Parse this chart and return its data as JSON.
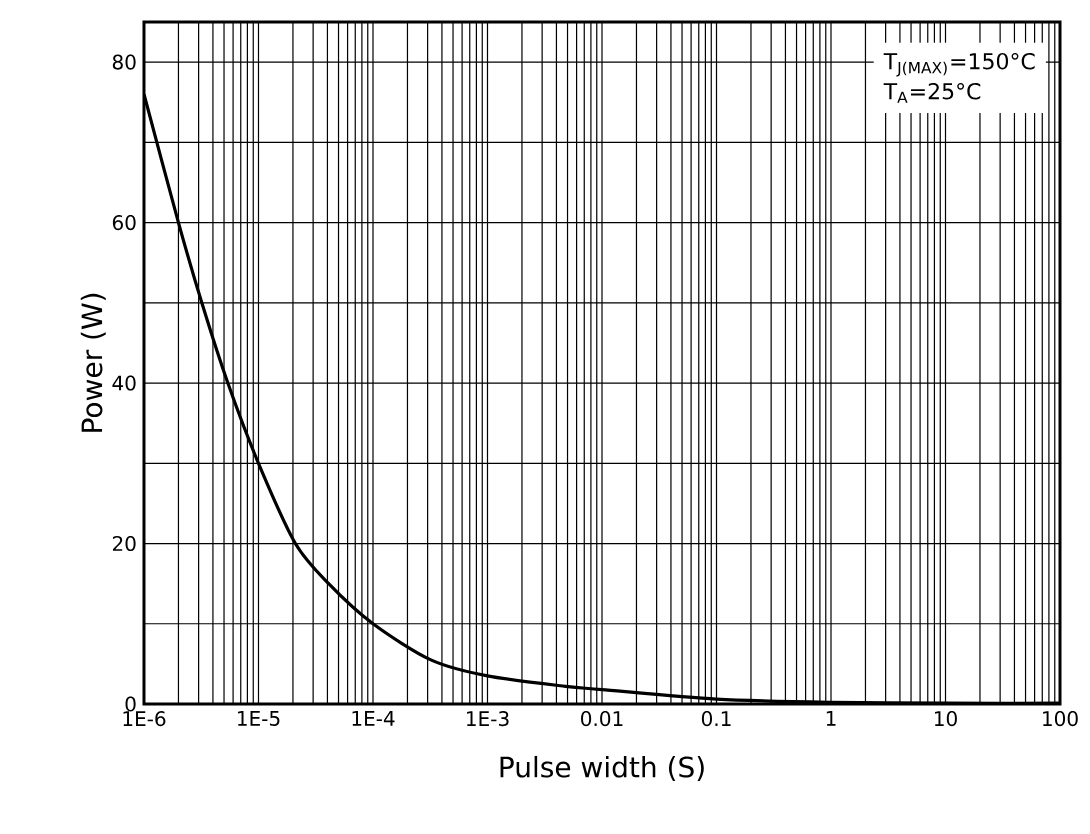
{
  "chart_data": {
    "type": "line",
    "xlabel": "Pulse width (S)",
    "ylabel": "Power (W)",
    "log": "x",
    "grid": true,
    "line_style": "solid",
    "xlim": [
      1e-06,
      100
    ],
    "ylim": [
      0,
      85
    ],
    "xticks": [
      {
        "value": 1e-06,
        "label": "1E-6"
      },
      {
        "value": 1e-05,
        "label": "1E-5"
      },
      {
        "value": 0.0001,
        "label": "1E-4"
      },
      {
        "value": 0.001,
        "label": "1E-3"
      },
      0.01,
      0.1,
      1,
      10,
      100
    ],
    "yticks": [
      0,
      20,
      40,
      60,
      80
    ],
    "annotations": [
      "T$_{J(MAX)}$=150°C",
      "T$_{A}$=25°C"
    ],
    "series": [
      {
        "color": "#000000",
        "x": [
          1e-06,
          2e-06,
          3.2e-06,
          5.4e-06,
          1e-05,
          2.1e-05,
          4.1e-05,
          0.0001,
          0.00032,
          0.001,
          0.0048,
          0.01,
          0.1,
          1,
          10,
          100
        ],
        "values": [
          76,
          60,
          50,
          40,
          30,
          20,
          15,
          10,
          5.5,
          3.5,
          2.2,
          1.8,
          0.6,
          0.2,
          0.1,
          0.1
        ]
      }
    ]
  }
}
